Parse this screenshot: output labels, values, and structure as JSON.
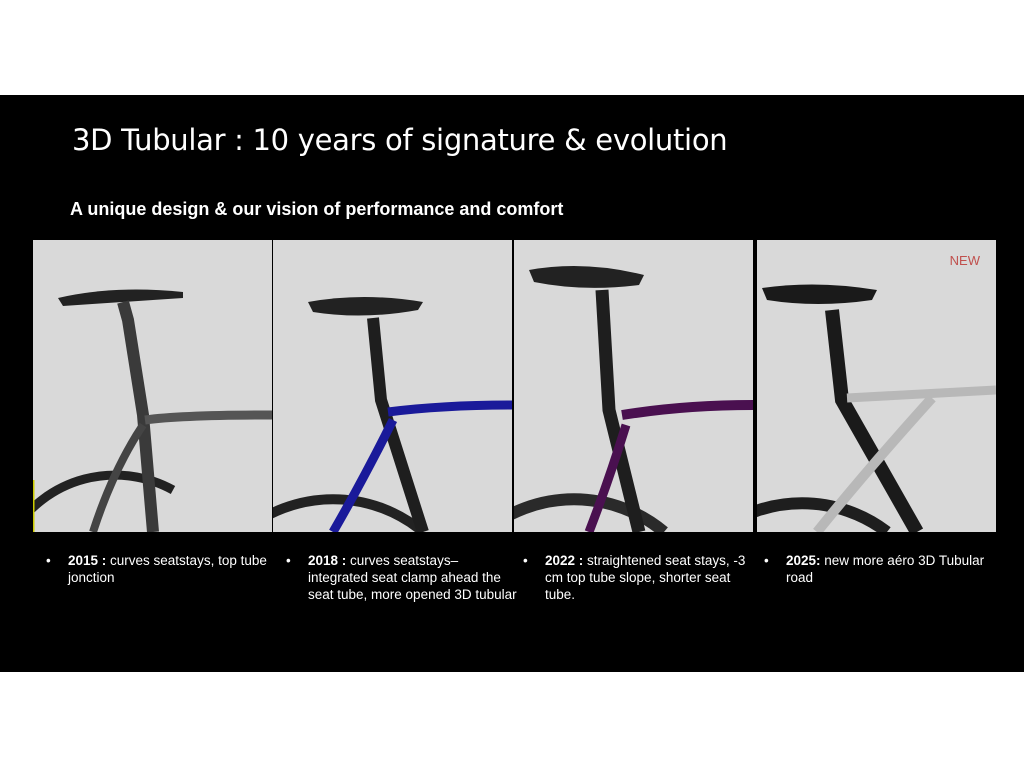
{
  "title": "3D Tubular : 10 years of signature & evolution",
  "subtitle": "A unique design & our vision of performance and comfort",
  "badge_new": "NEW",
  "colors": {
    "background": "#000000",
    "text": "#ffffff",
    "badge": "#c0504d",
    "panel": "#d9d9d9"
  },
  "items": [
    {
      "year": "2015 :",
      "text": " curves seatstays,  top tube jonction",
      "frame_color": "#4a4a4a"
    },
    {
      "year": "2018 :",
      "text": "  curves seatstays– integrated seat clamp ahead the seat tube, more opened 3D tubular",
      "frame_color": "#1a1a9a"
    },
    {
      "year": "2022 :",
      "text": " straightened seat stays, -3 cm top tube slope, shorter seat tube.",
      "frame_color": "#4a1050"
    },
    {
      "year": "2025:",
      "text": "  new more aéro 3D Tubular road",
      "frame_color": "#b8b8b8"
    }
  ]
}
